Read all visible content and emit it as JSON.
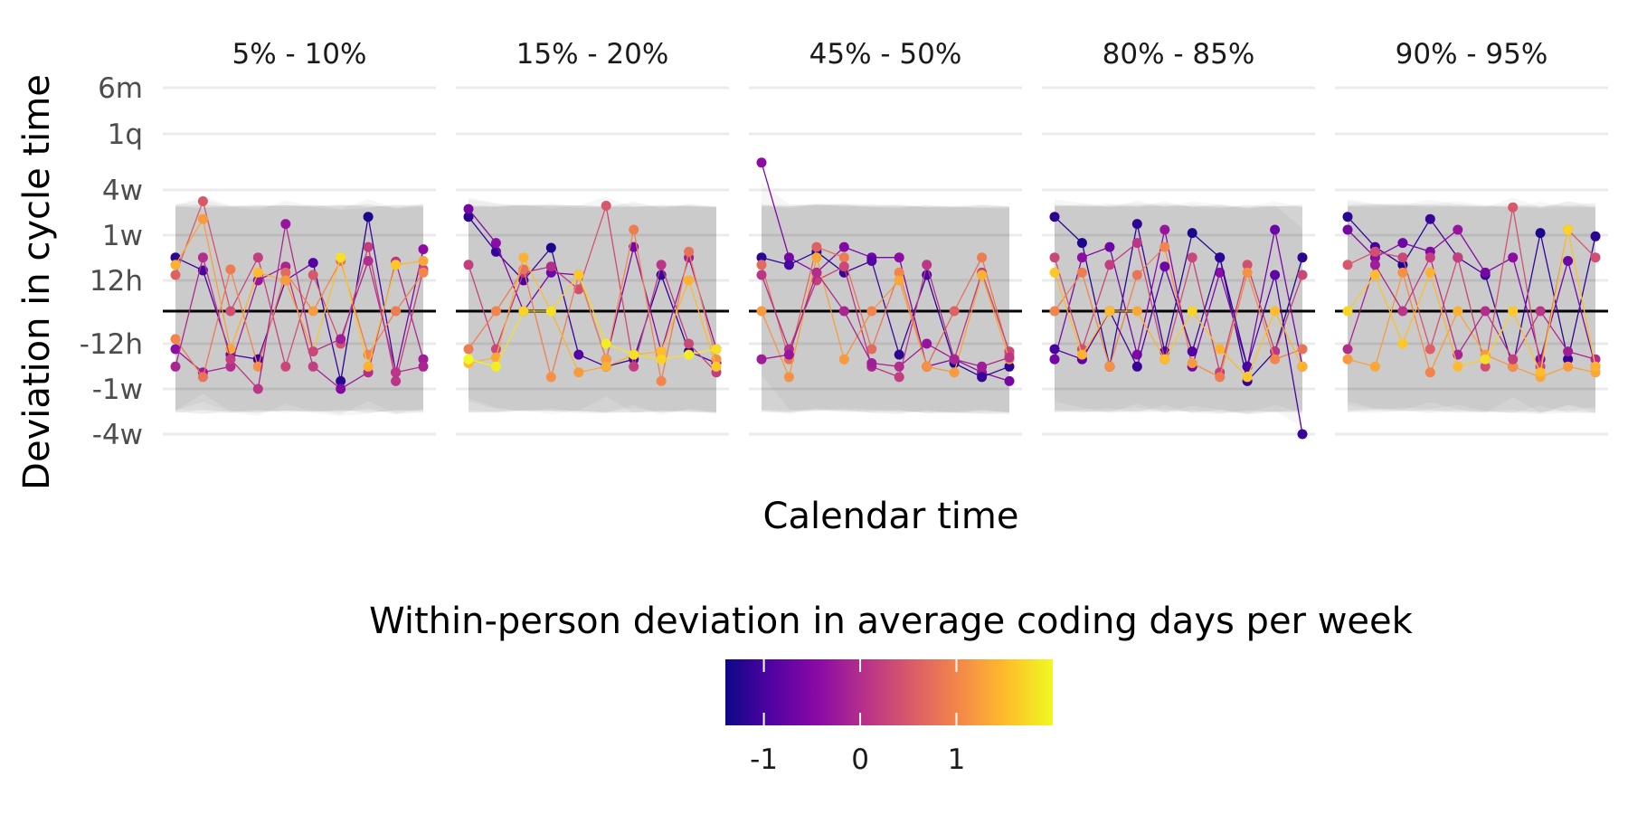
{
  "chart_data": {
    "type": "scatter",
    "subtype": "faceted-connected-scatter",
    "xlabel": "Calendar time",
    "ylabel": "Deviation in cycle time",
    "y_scale": "symmetric-log",
    "y_ticks": [
      "6m",
      "1q",
      "4w",
      "1w",
      "12h",
      "-12h",
      "-1w",
      "-4w"
    ],
    "y_tick_values_hours": [
      4380,
      2190,
      672,
      168,
      12,
      -12,
      -168,
      -672
    ],
    "grid": true,
    "reference_line_y": 0,
    "legend": {
      "title": "Within-person deviation in average coding days per week",
      "position": "bottom",
      "ticks": [
        -1,
        0,
        1
      ],
      "range": [
        -1.4,
        2.0
      ],
      "colormap": "plasma",
      "colors": [
        "#0d0887",
        "#5302a3",
        "#8b0aa5",
        "#b83289",
        "#db5c68",
        "#f48849",
        "#febd2a",
        "#f0f921"
      ]
    },
    "band_color": "#000000",
    "facets": [
      {
        "label": "5% - 10%",
        "x": [
          1,
          2,
          3,
          4,
          5,
          6,
          7,
          8,
          9,
          10
        ],
        "series": [
          {
            "y": [
              60,
              28,
              -30,
              -40,
              12,
              45,
              -120,
              300,
              -80,
              90
            ],
            "c": [
              -1.2,
              -1.0,
              -0.8,
              -1.1,
              -0.5,
              -0.9,
              -1.2,
              -1.3,
              -0.7,
              -0.4
            ]
          },
          {
            "y": [
              20,
              480,
              0,
              60,
              -60,
              20,
              -12,
              100,
              -120,
              30
            ],
            "c": [
              0.6,
              0.5,
              0.4,
              0.2,
              0.3,
              0.5,
              0.4,
              0.2,
              0.1,
              0.3
            ]
          },
          {
            "y": [
              -20,
              -80,
              -60,
              12,
              36,
              -60,
              -168,
              -80,
              48,
              -40
            ],
            "c": [
              -0.4,
              -0.2,
              0.0,
              -0.3,
              -0.1,
              0.2,
              -0.5,
              0.0,
              0.1,
              -0.2
            ]
          },
          {
            "y": [
              -10,
              -100,
              30,
              -60,
              24,
              0,
              50,
              -30,
              0,
              24
            ],
            "c": [
              1.0,
              0.8,
              0.9,
              1.1,
              0.7,
              1.2,
              0.8,
              1.0,
              0.9,
              1.0
            ]
          },
          {
            "y": [
              40,
              280,
              -20,
              24,
              12,
              -24,
              60,
              -60,
              40,
              50
            ],
            "c": [
              1.4,
              1.2,
              1.3,
              1.5,
              1.2,
              1.3,
              1.8,
              1.4,
              1.6,
              1.3
            ]
          },
          {
            "y": [
              -60,
              60,
              -40,
              -168,
              240,
              -24,
              -10,
              50,
              -80,
              -60
            ],
            "c": [
              -0.1,
              0.0,
              0.2,
              0.1,
              -0.3,
              0.3,
              -0.2,
              0.0,
              0.1,
              -0.1
            ]
          }
        ]
      },
      {
        "label": "15% - 20%",
        "x": [
          1,
          2,
          3,
          4,
          5,
          6,
          7,
          8,
          9,
          10
        ],
        "series": [
          {
            "y": [
              300,
              80,
              12,
              96,
              -30,
              -60,
              -40,
              20,
              -24,
              -50
            ],
            "c": [
              -1.2,
              -1.1,
              -1.0,
              -1.3,
              -0.9,
              -1.2,
              -1.0,
              -1.1,
              -1.2,
              -0.8
            ]
          },
          {
            "y": [
              380,
              120,
              0,
              24,
              20,
              -40,
              100,
              -24,
              60,
              -20
            ],
            "c": [
              -0.6,
              -0.4,
              -0.5,
              -0.7,
              -0.3,
              -0.5,
              -0.6,
              -0.4,
              -0.2,
              -0.5
            ]
          },
          {
            "y": [
              40,
              -20,
              24,
              36,
              8,
              420,
              -60,
              40,
              -12,
              -80
            ],
            "c": [
              0.2,
              0.3,
              0.1,
              0.0,
              0.4,
              0.5,
              0.2,
              0.1,
              0.3,
              0.2
            ]
          },
          {
            "y": [
              -20,
              0,
              30,
              -100,
              20,
              -40,
              200,
              -120,
              80,
              -40
            ],
            "c": [
              0.9,
              1.0,
              0.8,
              1.1,
              0.7,
              1.2,
              0.9,
              1.0,
              0.8,
              1.1
            ]
          },
          {
            "y": [
              -50,
              -36,
              60,
              0,
              -80,
              -60,
              -30,
              -24,
              12,
              -60
            ],
            "c": [
              1.5,
              1.3,
              1.4,
              1.6,
              1.2,
              1.4,
              1.3,
              1.5,
              1.4,
              1.6
            ]
          },
          {
            "y": [
              -40,
              -60,
              0,
              0,
              20,
              -12,
              -30,
              -40,
              -30,
              -20
            ],
            "c": [
              2.0,
              1.9,
              1.7,
              1.8,
              1.6,
              1.9,
              1.8,
              1.7,
              1.9,
              1.8
            ]
          }
        ]
      },
      {
        "label": "45% - 50%",
        "x": [
          1,
          2,
          3,
          4,
          5,
          6,
          7,
          8,
          9,
          10
        ],
        "series": [
          {
            "y": [
              1200,
              60,
              24,
              100,
              60,
              60,
              -60,
              -40,
              -80,
              -120
            ],
            "c": [
              -0.4,
              -0.6,
              -0.3,
              -0.5,
              -0.7,
              -0.4,
              -0.6,
              -0.5,
              -0.3,
              -0.6
            ]
          },
          {
            "y": [
              60,
              40,
              80,
              24,
              50,
              -30,
              20,
              -50,
              -100,
              -60
            ],
            "c": [
              -1.2,
              -1.0,
              -1.3,
              -1.1,
              -0.9,
              -1.2,
              -1.0,
              -1.3,
              -1.1,
              -1.2
            ]
          },
          {
            "y": [
              40,
              -40,
              100,
              60,
              -20,
              24,
              -60,
              0,
              60,
              -30
            ],
            "c": [
              0.7,
              0.8,
              0.6,
              0.9,
              0.7,
              1.0,
              0.8,
              0.6,
              0.9,
              0.8
            ]
          },
          {
            "y": [
              20,
              -20,
              12,
              36,
              -60,
              -100,
              40,
              -40,
              24,
              -24
            ],
            "c": [
              0.1,
              0.0,
              0.2,
              0.3,
              -0.1,
              0.2,
              0.1,
              0.0,
              0.2,
              0.3
            ]
          },
          {
            "y": [
              0,
              -100,
              60,
              -40,
              0,
              12,
              -60,
              -80,
              20,
              -40
            ],
            "c": [
              1.2,
              1.1,
              1.3,
              1.2,
              1.0,
              1.3,
              1.1,
              1.2,
              1.4,
              1.2
            ]
          },
          {
            "y": [
              -40,
              -30,
              24,
              0,
              -50,
              -60,
              -12,
              -40,
              -60,
              -36
            ],
            "c": [
              -0.2,
              -0.3,
              0.0,
              -0.1,
              -0.2,
              0.0,
              -0.3,
              -0.1,
              -0.2,
              0.1
            ]
          }
        ]
      },
      {
        "label": "80% - 85%",
        "x": [
          1,
          2,
          3,
          4,
          5,
          6,
          7,
          8,
          9,
          10
        ],
        "series": [
          {
            "y": [
              300,
              120,
              -60,
              240,
              -24,
              180,
              60,
              -120,
              -24,
              60
            ],
            "c": [
              -1.2,
              -1.3,
              -1.1,
              -1.2,
              -1.0,
              -1.3,
              -1.2,
              -1.1,
              -1.3,
              -1.2
            ]
          },
          {
            "y": [
              -40,
              60,
              100,
              -30,
              200,
              -60,
              24,
              -60,
              200,
              -60
            ],
            "c": [
              -0.6,
              -0.4,
              -0.7,
              -0.5,
              -0.3,
              -0.6,
              -0.4,
              -0.5,
              -0.7,
              -0.4
            ]
          },
          {
            "y": [
              60,
              -20,
              40,
              120,
              -40,
              60,
              -80,
              40,
              -24,
              20
            ],
            "c": [
              0.3,
              0.4,
              0.2,
              0.1,
              0.5,
              0.3,
              0.2,
              0.4,
              0.1,
              0.3
            ]
          },
          {
            "y": [
              0,
              24,
              -60,
              20,
              100,
              -50,
              -100,
              24,
              -40,
              -20
            ],
            "c": [
              1.0,
              0.9,
              1.1,
              0.8,
              1.0,
              1.2,
              0.9,
              1.1,
              1.0,
              0.8
            ]
          },
          {
            "y": [
              -20,
              -40,
              0,
              -60,
              36,
              -24,
              60,
              -60,
              20,
              -700
            ],
            "c": [
              -1.0,
              -0.8,
              -0.9,
              -1.1,
              -0.7,
              -0.9,
              -1.2,
              -1.0,
              -0.8,
              -1.1
            ]
          },
          {
            "y": [
              24,
              -30,
              0,
              0,
              -40,
              0,
              -20,
              -100,
              0,
              -60
            ],
            "c": [
              1.6,
              1.4,
              1.5,
              1.3,
              1.5,
              1.7,
              1.4,
              1.6,
              1.5,
              1.4
            ]
          }
        ]
      },
      {
        "label": "90% - 95%",
        "x": [
          1,
          2,
          3,
          4,
          5,
          6,
          7,
          8,
          9,
          10
        ],
        "series": [
          {
            "y": [
              300,
              100,
              40,
              280,
              60,
              20,
              -60,
              180,
              -40,
              160
            ],
            "c": [
              -1.2,
              -1.0,
              -1.3,
              -1.1,
              -0.9,
              -1.2,
              -1.0,
              -1.3,
              -1.1,
              -1.2
            ]
          },
          {
            "y": [
              200,
              60,
              120,
              80,
              200,
              24,
              60,
              -40,
              50,
              -60
            ],
            "c": [
              -0.6,
              -0.4,
              -0.7,
              -0.5,
              -0.3,
              -0.6,
              -0.4,
              -0.5,
              -0.7,
              -0.4
            ]
          },
          {
            "y": [
              40,
              80,
              60,
              -20,
              60,
              -60,
              400,
              -60,
              200,
              60
            ],
            "c": [
              0.5,
              0.4,
              0.3,
              0.6,
              0.2,
              0.4,
              0.5,
              0.3,
              0.6,
              0.4
            ]
          },
          {
            "y": [
              -40,
              -60,
              24,
              -80,
              0,
              -30,
              -60,
              -100,
              -60,
              -80
            ],
            "c": [
              1.2,
              1.3,
              1.1,
              1.0,
              1.4,
              1.2,
              1.1,
              1.3,
              1.2,
              1.3
            ]
          },
          {
            "y": [
              -20,
              40,
              0,
              60,
              -30,
              0,
              -40,
              0,
              -24,
              -40
            ],
            "c": [
              0.0,
              -0.2,
              0.1,
              0.2,
              -0.1,
              0.0,
              0.2,
              0.1,
              -0.2,
              0.0
            ]
          },
          {
            "y": [
              0,
              20,
              -12,
              24,
              -60,
              -40,
              0,
              -80,
              200,
              -60
            ],
            "c": [
              1.7,
              1.5,
              1.6,
              1.4,
              1.5,
              1.8,
              1.6,
              1.5,
              1.7,
              1.4
            ]
          }
        ]
      }
    ]
  }
}
